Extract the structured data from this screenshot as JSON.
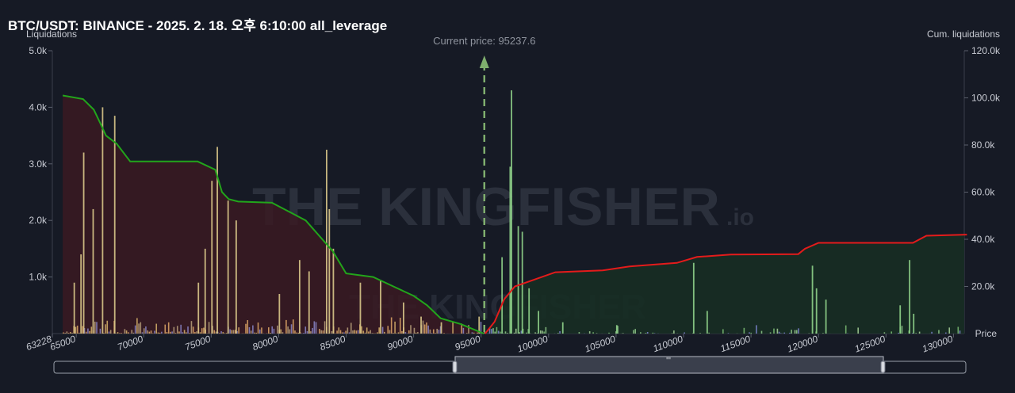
{
  "header": {
    "title": "BTC/USDT: BINANCE - 2025. 2. 18. 오후 6:10:00 all_leverage"
  },
  "watermark": {
    "main": "THE KINGFISHER",
    "suffix": ".io"
  },
  "chart_data": {
    "type": "bar",
    "left_axis": {
      "label": "Liquidations",
      "ticks": [
        "1.0k",
        "2.0k",
        "3.0k",
        "4.0k",
        "5.0k"
      ],
      "range": [
        0,
        5000
      ]
    },
    "right_axis": {
      "label": "Cum. liquidations",
      "ticks": [
        "20.0k",
        "40.0k",
        "60.0k",
        "80.0k",
        "100.0k",
        "120.0k"
      ],
      "range": [
        0,
        120000
      ]
    },
    "x_axis": {
      "label": "Price",
      "range": [
        63228,
        130800
      ],
      "start_label": "63228",
      "ticks": [
        65000,
        70000,
        75000,
        80000,
        85000,
        90000,
        95000,
        100000,
        105000,
        110000,
        115000,
        120000,
        125000,
        130000
      ]
    },
    "current_price": {
      "label": "Current price: 95237.6",
      "value": 95237.6
    },
    "cum_long_liquidations": {
      "color": "#22a51b",
      "points": [
        [
          64000,
          101000
        ],
        [
          65500,
          99500
        ],
        [
          66300,
          95000
        ],
        [
          66800,
          89000
        ],
        [
          67200,
          84000
        ],
        [
          68000,
          80500
        ],
        [
          69000,
          73000
        ],
        [
          74000,
          73000
        ],
        [
          75300,
          69500
        ],
        [
          75800,
          60000
        ],
        [
          76300,
          57000
        ],
        [
          77000,
          56000
        ],
        [
          79500,
          55500
        ],
        [
          81000,
          51000
        ],
        [
          82000,
          48000
        ],
        [
          84000,
          35000
        ],
        [
          85000,
          25500
        ],
        [
          87000,
          24000
        ],
        [
          88500,
          20000
        ],
        [
          90000,
          16000
        ],
        [
          91000,
          12000
        ],
        [
          92000,
          6500
        ],
        [
          93500,
          4000
        ],
        [
          95200,
          0
        ]
      ]
    },
    "cum_short_liquidations": {
      "color": "#e41b1b",
      "points": [
        [
          95300,
          0
        ],
        [
          96000,
          5000
        ],
        [
          96700,
          14500
        ],
        [
          97500,
          20000
        ],
        [
          99000,
          23000
        ],
        [
          100500,
          26000
        ],
        [
          104000,
          26800
        ],
        [
          106000,
          28500
        ],
        [
          109500,
          30000
        ],
        [
          111000,
          32500
        ],
        [
          113500,
          33500
        ],
        [
          118500,
          33700
        ],
        [
          119000,
          36000
        ],
        [
          120000,
          38500
        ],
        [
          127000,
          38500
        ],
        [
          128000,
          41500
        ],
        [
          131000,
          42000
        ]
      ]
    },
    "bars": [
      {
        "x": 65500,
        "y": 3200
      },
      {
        "x": 66200,
        "y": 2200
      },
      {
        "x": 66900,
        "y": 4000
      },
      {
        "x": 65300,
        "y": 1400
      },
      {
        "x": 64800,
        "y": 900
      },
      {
        "x": 67800,
        "y": 3850
      },
      {
        "x": 75400,
        "y": 3300
      },
      {
        "x": 75000,
        "y": 2700
      },
      {
        "x": 76200,
        "y": 2350
      },
      {
        "x": 74500,
        "y": 1500
      },
      {
        "x": 74000,
        "y": 900
      },
      {
        "x": 76800,
        "y": 2000
      },
      {
        "x": 83500,
        "y": 3250
      },
      {
        "x": 83700,
        "y": 2200
      },
      {
        "x": 84000,
        "y": 1500
      },
      {
        "x": 81500,
        "y": 1300
      },
      {
        "x": 82200,
        "y": 1100
      },
      {
        "x": 80000,
        "y": 700
      },
      {
        "x": 87500,
        "y": 950
      },
      {
        "x": 86000,
        "y": 900
      },
      {
        "x": 89200,
        "y": 550
      },
      {
        "x": 90500,
        "y": 300
      },
      {
        "x": 92000,
        "y": 200
      },
      {
        "x": 94800,
        "y": 300
      },
      {
        "x": 96500,
        "y": 1350
      },
      {
        "x": 97100,
        "y": 2950
      },
      {
        "x": 97200,
        "y": 4300
      },
      {
        "x": 97700,
        "y": 1900
      },
      {
        "x": 98000,
        "y": 1800
      },
      {
        "x": 98500,
        "y": 800
      },
      {
        "x": 99200,
        "y": 400
      },
      {
        "x": 101000,
        "y": 200
      },
      {
        "x": 105000,
        "y": 150
      },
      {
        "x": 110700,
        "y": 1250
      },
      {
        "x": 111700,
        "y": 400
      },
      {
        "x": 119500,
        "y": 1200
      },
      {
        "x": 119800,
        "y": 800
      },
      {
        "x": 120500,
        "y": 600
      },
      {
        "x": 126700,
        "y": 1300
      },
      {
        "x": 126000,
        "y": 500
      },
      {
        "x": 127000,
        "y": 350
      }
    ]
  },
  "navigator": {
    "handle_label": "'''"
  }
}
